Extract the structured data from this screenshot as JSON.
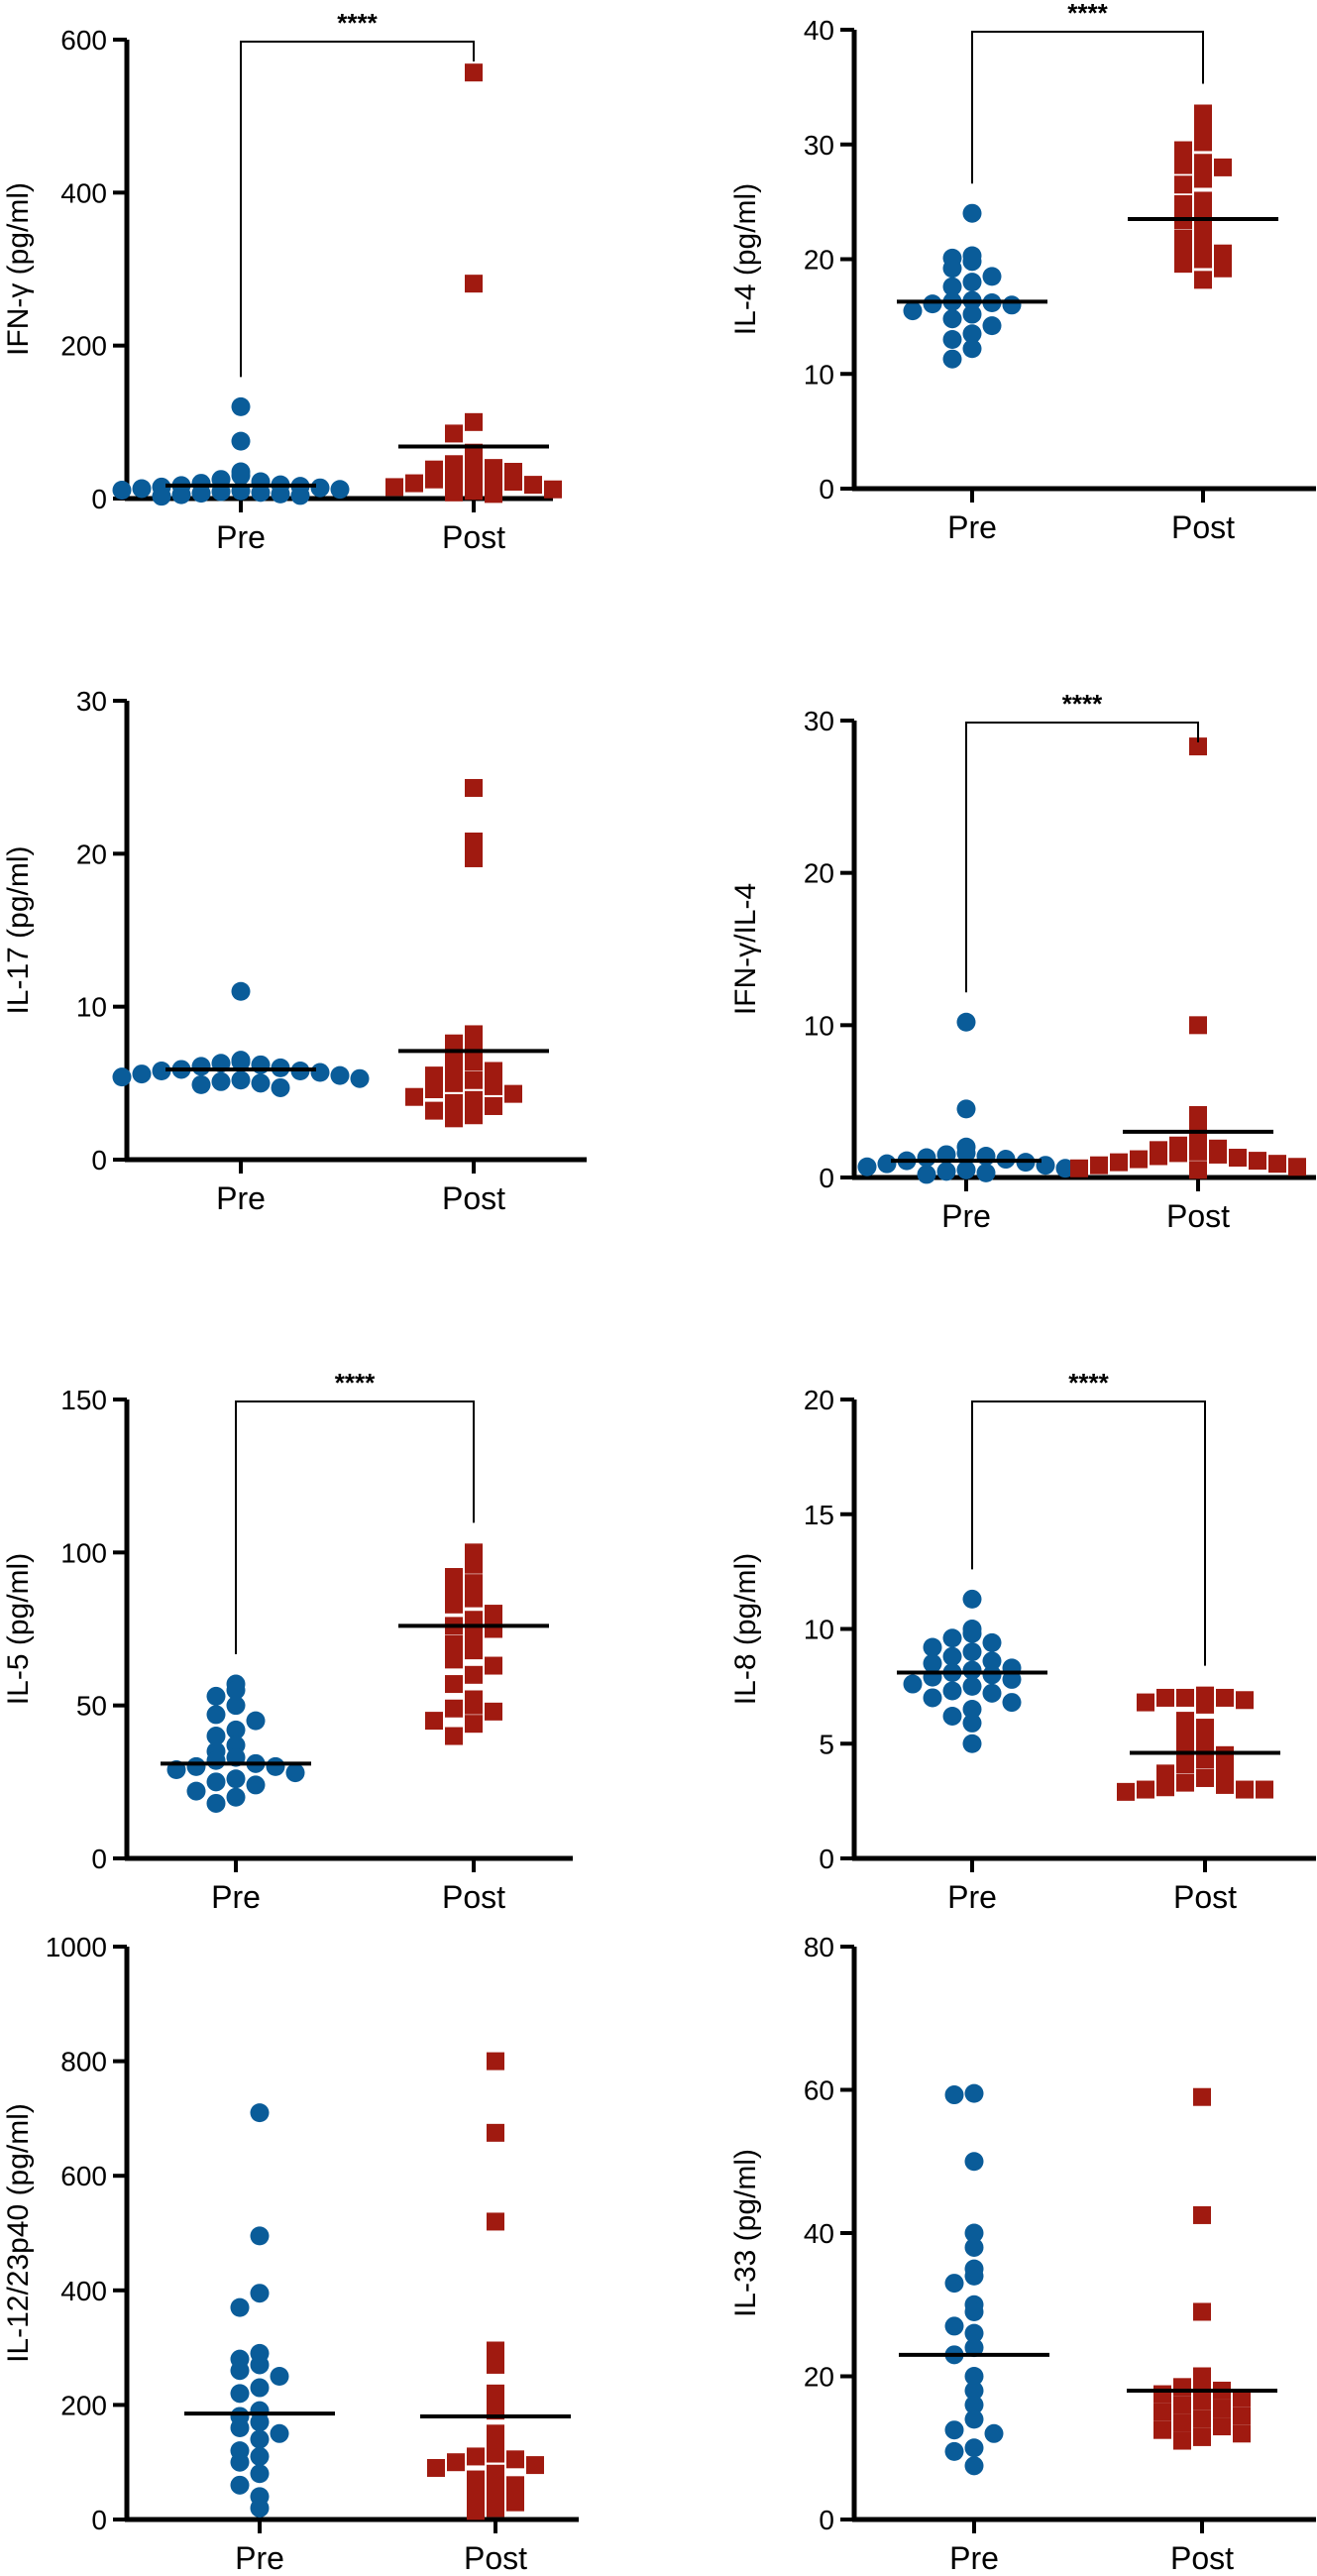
{
  "figure": {
    "colors": {
      "pre": "#0a5c99",
      "post": "#a01a10",
      "axis": "#000000"
    },
    "marker_shapes": {
      "Pre": "circle",
      "Post": "square"
    }
  },
  "chart_data": [
    {
      "type": "scatter",
      "ylabel": "IFN-γ (pg/ml)",
      "ylim": [
        0,
        600
      ],
      "yticks": [
        0,
        200,
        400,
        600
      ],
      "categories": [
        "Pre",
        "Post"
      ],
      "significance": "****",
      "series": [
        {
          "category": "Pre",
          "mean": 17,
          "values": [
            120,
            75,
            35,
            30,
            25,
            22,
            20,
            18,
            17,
            16,
            15,
            14,
            13,
            12,
            11,
            10,
            9,
            8,
            7,
            6,
            5,
            4,
            3
          ]
        },
        {
          "category": "Post",
          "mean": 68,
          "values": [
            557,
            281,
            100,
            85,
            60,
            50,
            45,
            40,
            38,
            35,
            32,
            30,
            28,
            25,
            22,
            20,
            18,
            15,
            12,
            10,
            8,
            6
          ]
        }
      ]
    },
    {
      "type": "scatter",
      "ylabel": "IL-4 (pg/ml)",
      "ylim": [
        0,
        40
      ],
      "yticks": [
        0,
        10,
        20,
        30,
        40
      ],
      "categories": [
        "Pre",
        "Post"
      ],
      "significance": "****",
      "series": [
        {
          "category": "Pre",
          "mean": 16.3,
          "values": [
            24,
            20.3,
            20.1,
            19.8,
            19.2,
            18.5,
            18,
            17.6,
            16.4,
            16.3,
            16.2,
            16.1,
            16,
            15.5,
            15.2,
            14.8,
            14.2,
            13.5,
            13,
            12.2,
            11.3
          ]
        },
        {
          "category": "Post",
          "mean": 23.5,
          "values": [
            32.7,
            31.5,
            30.2,
            29.5,
            28.4,
            28.2,
            28,
            27,
            26.5,
            25.1,
            24.8,
            24,
            23.4,
            22.6,
            21.8,
            21.3,
            21,
            20.5,
            20,
            19.6,
            19.2,
            18.2
          ]
        }
      ]
    },
    {
      "type": "scatter",
      "ylabel": "IL-17 (pg/ml)",
      "ylim": [
        0,
        30
      ],
      "yticks": [
        0,
        10,
        20,
        30
      ],
      "categories": [
        "Pre",
        "Post"
      ],
      "significance": "",
      "series": [
        {
          "category": "Pre",
          "mean": 5.9,
          "values": [
            11,
            6.5,
            6.4,
            6.3,
            6.2,
            6.1,
            6,
            5.9,
            5.8,
            5.8,
            5.7,
            5.6,
            5.5,
            5.4,
            5.3,
            5.2,
            5.1,
            5,
            4.9,
            4.7
          ]
        },
        {
          "category": "Post",
          "mean": 7.1,
          "values": [
            24.3,
            20.8,
            19.7,
            8.2,
            7.6,
            7.2,
            6.8,
            6.4,
            6.1,
            5.8,
            5.5,
            5.2,
            5,
            4.8,
            4.6,
            4.3,
            4.1,
            3.9,
            3.7,
            3.5,
            3.2,
            2.9,
            2.7
          ]
        }
      ]
    },
    {
      "type": "scatter",
      "ylabel": "IFN-γ/IL-4",
      "ylim": [
        0,
        30
      ],
      "yticks": [
        0,
        10,
        20,
        30
      ],
      "categories": [
        "Pre",
        "Post"
      ],
      "significance": "****",
      "series": [
        {
          "category": "Pre",
          "mean": 1.1,
          "values": [
            10.2,
            4.5,
            2,
            1.6,
            1.5,
            1.4,
            1.3,
            1.2,
            1.1,
            1,
            0.9,
            0.8,
            0.7,
            0.6,
            0.5,
            0.4,
            0.3,
            0.2
          ]
        },
        {
          "category": "Post",
          "mean": 3,
          "values": [
            28.3,
            10,
            4.1,
            3,
            2.4,
            2.1,
            1.9,
            1.8,
            1.7,
            1.6,
            1.5,
            1.4,
            1.3,
            1.2,
            1.1,
            1,
            0.9,
            0.8,
            0.7,
            0.6,
            0.5
          ]
        }
      ]
    },
    {
      "type": "scatter",
      "ylabel": "IL-5 (pg/ml)",
      "ylim": [
        0,
        150
      ],
      "yticks": [
        0,
        50,
        100,
        150
      ],
      "categories": [
        "Pre",
        "Post"
      ],
      "significance": "****",
      "series": [
        {
          "category": "Pre",
          "mean": 31,
          "values": [
            57,
            55,
            53,
            50,
            47,
            45,
            42,
            40,
            37,
            35,
            33,
            32,
            31,
            30,
            30,
            29,
            28,
            26,
            25,
            24,
            22,
            20,
            18
          ]
        },
        {
          "category": "Post",
          "mean": 76,
          "values": [
            100,
            96,
            92,
            90,
            88,
            85,
            83,
            80,
            78,
            76,
            75,
            73,
            70,
            68,
            65,
            63,
            60,
            57,
            52,
            50,
            49,
            48,
            45,
            44,
            40
          ]
        }
      ]
    },
    {
      "type": "scatter",
      "ylabel": "IL-8 (pg/ml)",
      "ylim": [
        0,
        20
      ],
      "yticks": [
        0,
        5,
        10,
        15,
        20
      ],
      "categories": [
        "Pre",
        "Post"
      ],
      "significance": "****",
      "series": [
        {
          "category": "Pre",
          "mean": 8.1,
          "values": [
            11.3,
            10,
            9.8,
            9.6,
            9.4,
            9.2,
            9,
            8.8,
            8.6,
            8.5,
            8.3,
            8.2,
            8.1,
            8,
            7.9,
            7.8,
            7.6,
            7.5,
            7.3,
            7.2,
            7,
            6.8,
            6.5,
            6.2,
            5.9,
            5
          ]
        },
        {
          "category": "Post",
          "mean": 4.6,
          "values": [
            7.1,
            7,
            7,
            7,
            6.9,
            6.8,
            6.7,
            6,
            5.7,
            5.3,
            5,
            4.8,
            4.5,
            4.3,
            4.1,
            3.9,
            3.7,
            3.5,
            3.3,
            3.2,
            3.1,
            3,
            3,
            3,
            2.9
          ]
        }
      ]
    },
    {
      "type": "scatter",
      "ylabel": "IL-12/23p40 (pg/ml)",
      "ylim": [
        0,
        1000
      ],
      "yticks": [
        0,
        200,
        400,
        600,
        800,
        1000
      ],
      "categories": [
        "Pre",
        "Post"
      ],
      "significance": "",
      "series": [
        {
          "category": "Pre",
          "mean": 185,
          "values": [
            710,
            495,
            395,
            370,
            290,
            280,
            270,
            260,
            250,
            230,
            220,
            190,
            180,
            170,
            160,
            150,
            140,
            120,
            110,
            100,
            80,
            60,
            40,
            20
          ]
        },
        {
          "category": "Post",
          "mean": 180,
          "values": [
            800,
            675,
            520,
            295,
            270,
            220,
            190,
            150,
            130,
            115,
            110,
            105,
            100,
            95,
            90,
            80,
            70,
            60,
            50,
            40,
            30,
            20,
            15
          ]
        }
      ]
    },
    {
      "type": "scatter",
      "ylabel": "IL-33 (pg/ml)",
      "ylim": [
        0,
        80
      ],
      "yticks": [
        0,
        20,
        40,
        60,
        80
      ],
      "categories": [
        "Pre",
        "Post"
      ],
      "significance": "",
      "series": [
        {
          "category": "Pre",
          "mean": 23,
          "values": [
            59.5,
            59.3,
            50,
            40,
            38,
            35,
            34,
            33,
            30,
            29,
            27,
            26,
            24,
            23,
            20,
            18,
            16,
            14,
            12.5,
            12,
            10,
            9.5,
            7.5
          ]
        },
        {
          "category": "Post",
          "mean": 18,
          "values": [
            59,
            42.5,
            29,
            20,
            19,
            18.5,
            18,
            17.5,
            17,
            16.5,
            16,
            15.5,
            15,
            14.5,
            14,
            13.5,
            13,
            12.5,
            12,
            11.5,
            11
          ]
        }
      ]
    }
  ]
}
